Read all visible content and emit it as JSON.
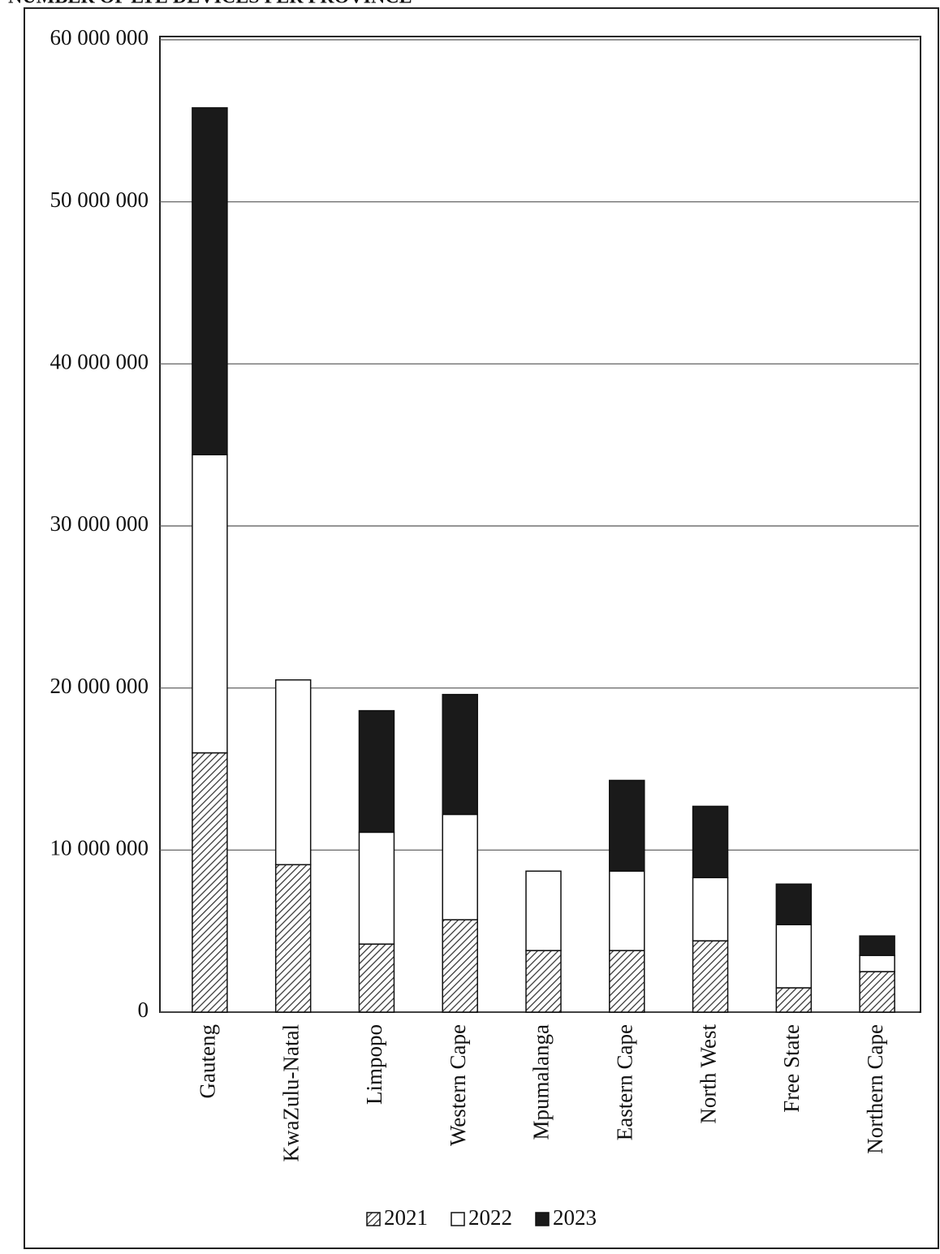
{
  "chart_data": {
    "type": "stacked_bar",
    "title": "NUMBER OF LTE DEVICES PER PROVINCE",
    "categories": [
      "Gauteng",
      "KwaZulu-Natal",
      "Limpopo",
      "Western Cape",
      "Mpumalanga",
      "Eastern Cape",
      "North West",
      "Free State",
      "Northern Cape"
    ],
    "series": [
      {
        "name": "2021",
        "color": "#444444",
        "hatch": true,
        "values": [
          16000000,
          9100000,
          4200000,
          5700000,
          3800000,
          3800000,
          4400000,
          1500000,
          2500000
        ]
      },
      {
        "name": "2022",
        "color": "#ffffff",
        "hatch": false,
        "values": [
          18400000,
          11400000,
          6900000,
          6500000,
          4900000,
          4900000,
          3900000,
          3900000,
          1000000
        ]
      },
      {
        "name": "2023",
        "color": "#1a1a1a",
        "hatch": false,
        "values": [
          21400000,
          0,
          7500000,
          7400000,
          0,
          5600000,
          4400000,
          2500000,
          1200000
        ]
      }
    ],
    "ylim": [
      0,
      60000000
    ],
    "yticks": [
      0,
      {
        "value": 10000000,
        "label": "10 000 000"
      },
      {
        "value": 20000000,
        "label": "20 000 000"
      },
      {
        "value": 30000000,
        "label": "30 000 000"
      },
      {
        "value": 40000000,
        "label": "40 000 000"
      },
      {
        "value": 50000000,
        "label": "50 000 000"
      },
      {
        "value": 60000000,
        "label": "60 000 000"
      }
    ],
    "grid": true,
    "legend": "bottom"
  }
}
